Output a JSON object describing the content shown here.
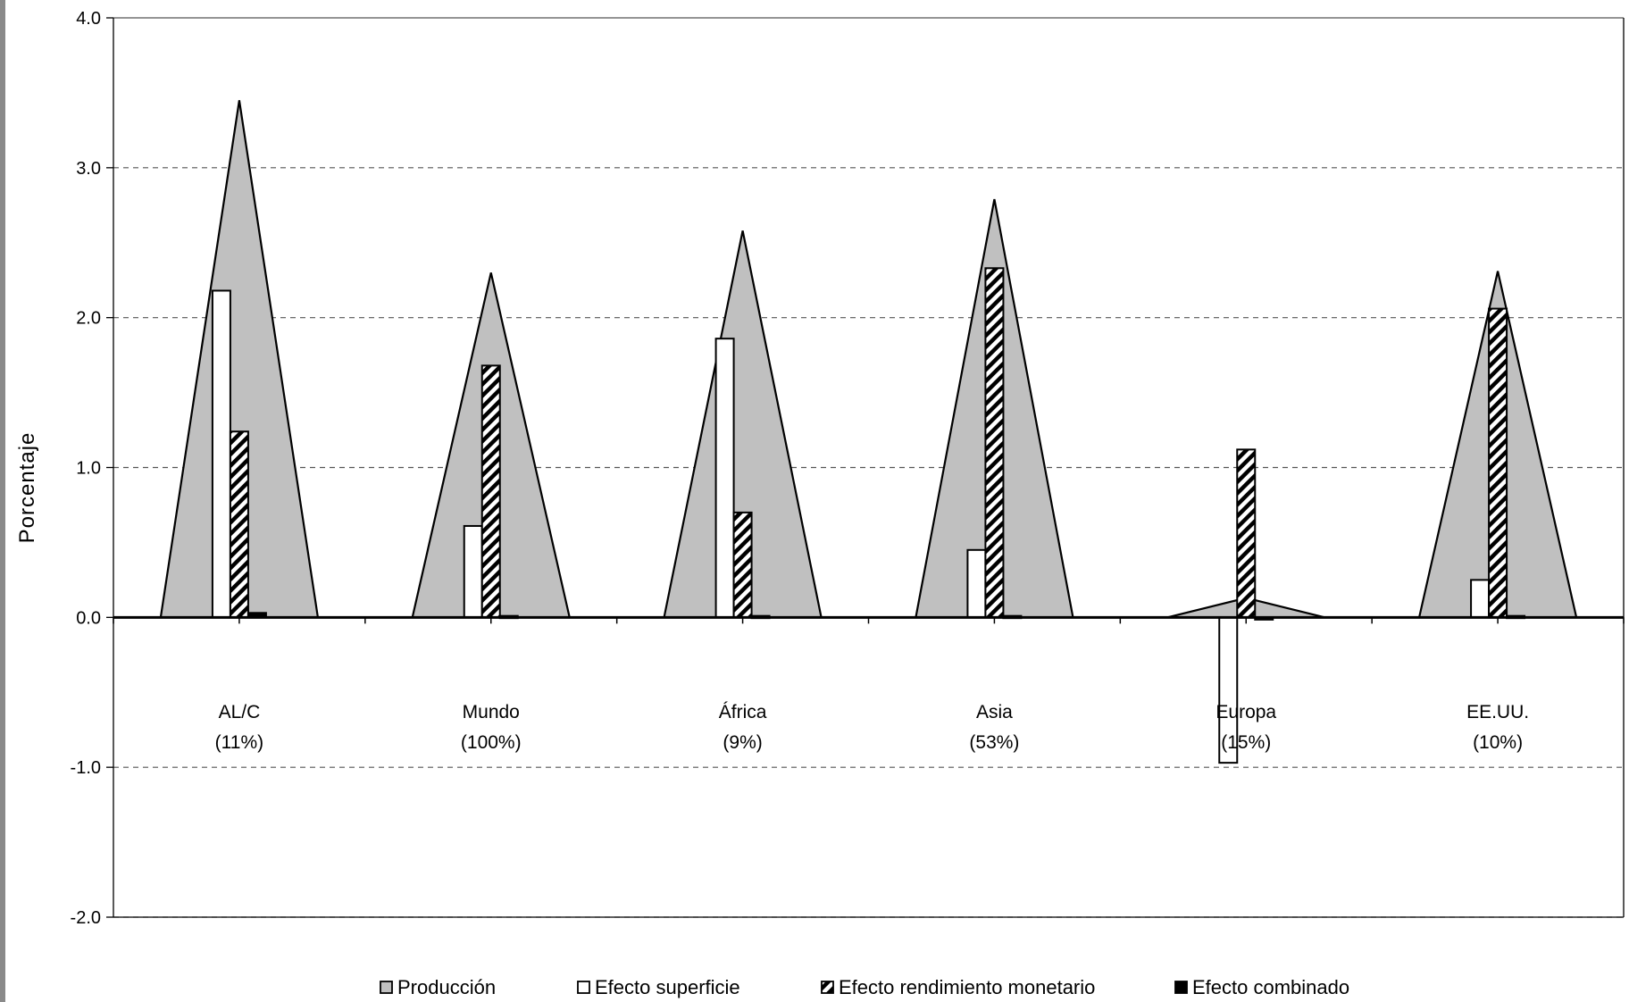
{
  "chart_data": {
    "type": "bar",
    "ylabel": "Porcentaje",
    "ylim": [
      -2.0,
      4.0
    ],
    "yticks": [
      "4.0",
      "3.0",
      "2.0",
      "1.0",
      "0.0",
      "-1.0",
      "-2.0"
    ],
    "grid": "dashed horizontal",
    "legend_position": "bottom",
    "categories": [
      {
        "name": "AL/C",
        "share": "(11%)"
      },
      {
        "name": "Mundo",
        "share": "(100%)"
      },
      {
        "name": "África",
        "share": "(9%)"
      },
      {
        "name": "Asia",
        "share": "(53%)"
      },
      {
        "name": "Europa",
        "share": "(15%)"
      },
      {
        "name": "EE.UU.",
        "share": "(10%)"
      }
    ],
    "series": [
      {
        "name": "Producción",
        "style": "area",
        "color": "#c0c0c0",
        "values": [
          3.45,
          2.3,
          2.58,
          2.79,
          0.13,
          2.31
        ]
      },
      {
        "name": "Efecto superficie",
        "style": "bar",
        "color": "#ffffff",
        "values": [
          2.18,
          0.61,
          1.86,
          0.45,
          -0.97,
          0.25
        ]
      },
      {
        "name": "Efecto rendimiento monetario",
        "style": "bar-hatched",
        "color": "#000000",
        "values": [
          1.24,
          1.68,
          0.7,
          2.33,
          1.12,
          2.06
        ]
      },
      {
        "name": "Efecto combinado",
        "style": "bar",
        "color": "#000000",
        "values": [
          0.03,
          0.01,
          0.01,
          0.01,
          -0.01,
          0.01
        ]
      }
    ]
  }
}
